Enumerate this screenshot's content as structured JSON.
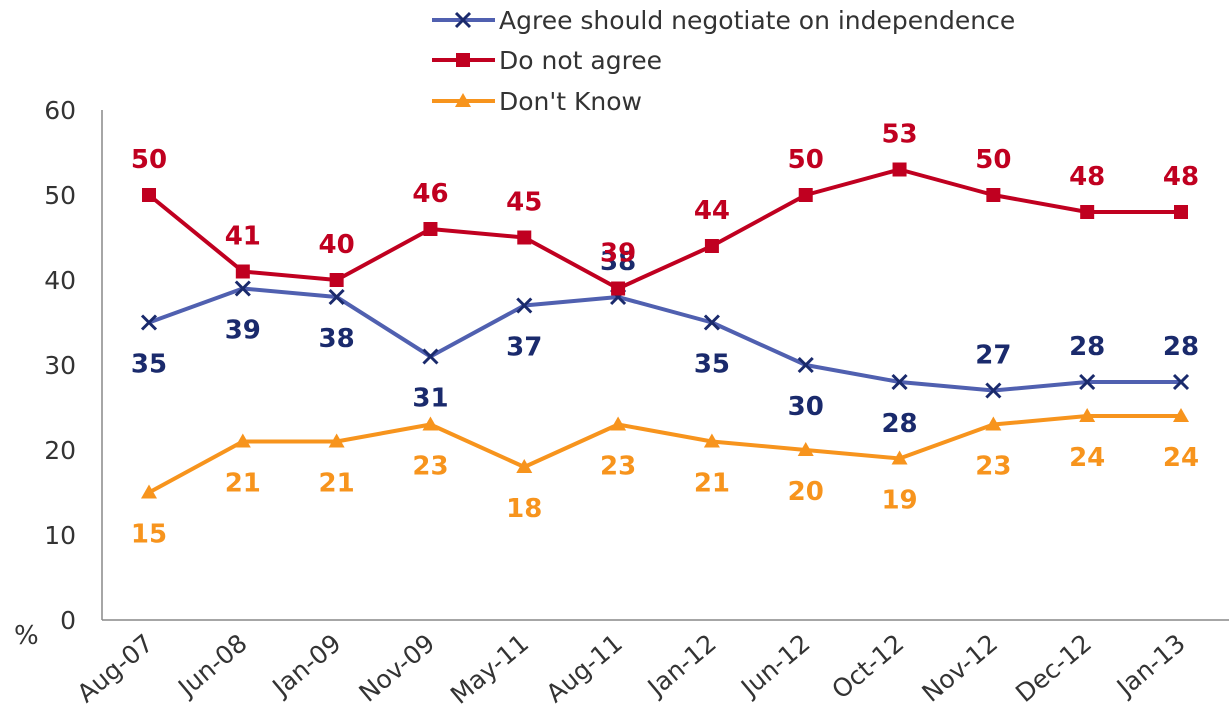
{
  "chart_data": {
    "type": "line",
    "categories": [
      "Aug-07",
      "Jun-08",
      "Jan-09",
      "Nov-09",
      "May-11",
      "Aug-11",
      "Jan-12",
      "Jun-12",
      "Oct-12",
      "Nov-12",
      "Dec-12",
      "Jan-13"
    ],
    "series": [
      {
        "name": "Agree should negotiate on independence",
        "values": [
          35,
          39,
          38,
          31,
          37,
          38,
          35,
          30,
          28,
          27,
          28,
          28
        ],
        "color": "#5060b0",
        "label_color": "#1a2a6c",
        "marker": "x",
        "label_pos": [
          "below",
          "below",
          "below",
          "below",
          "below",
          "above",
          "below",
          "below",
          "below",
          "above",
          "above",
          "above"
        ]
      },
      {
        "name": "Do not agree",
        "values": [
          50,
          41,
          40,
          46,
          45,
          39,
          44,
          50,
          53,
          50,
          48,
          48
        ],
        "color": "#c00020",
        "label_color": "#c00020",
        "marker": "square",
        "label_pos": [
          "above",
          "above",
          "above",
          "above",
          "above",
          "above",
          "above",
          "above",
          "above",
          "above",
          "above",
          "above"
        ]
      },
      {
        "name": "Don't Know",
        "values": [
          15,
          21,
          21,
          23,
          18,
          23,
          21,
          20,
          19,
          23,
          24,
          24
        ],
        "color": "#f7941d",
        "label_color": "#f7941d",
        "marker": "triangle",
        "label_pos": [
          "below",
          "below",
          "below",
          "below",
          "below",
          "below",
          "below",
          "below",
          "below",
          "below",
          "below",
          "below"
        ]
      }
    ],
    "ylim": [
      0,
      60
    ],
    "yticks": [
      0,
      10,
      20,
      30,
      40,
      50,
      60
    ],
    "ylabel": "%",
    "grid": false,
    "legend": "top-center"
  }
}
